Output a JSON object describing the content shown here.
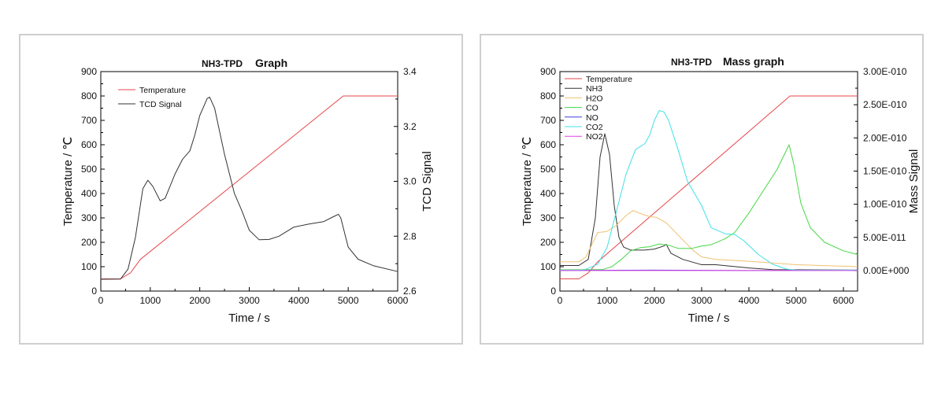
{
  "chart_data": [
    {
      "type": "line",
      "title_prefix": "NH3-TPD",
      "title_suffix": "Graph",
      "xlabel": "Time / s",
      "ylabel": "Temperature / ℃",
      "y2label": "TCD Signal",
      "xlim": [
        0,
        6000
      ],
      "ylim": [
        0,
        900
      ],
      "y2lim": [
        2.6,
        3.4
      ],
      "xticks": [
        0,
        1000,
        2000,
        3000,
        4000,
        5000,
        6000
      ],
      "yticks": [
        0,
        100,
        200,
        300,
        400,
        500,
        600,
        700,
        800,
        900
      ],
      "y2ticks": [
        "2.6",
        "2.8",
        "3.0",
        "3.2",
        "3.4"
      ],
      "grid": false,
      "legend_placement": "top-left",
      "series": [
        {
          "name": "Temperature",
          "axis": "left",
          "color": "#e8474a",
          "points": [
            [
              0,
              50
            ],
            [
              400,
              50
            ],
            [
              600,
              75
            ],
            [
              800,
              130
            ],
            [
              4900,
              800
            ],
            [
              6000,
              800
            ]
          ]
        },
        {
          "name": "TCD Signal",
          "axis": "right",
          "color": "#333333",
          "points": [
            [
              0,
              2.643
            ],
            [
              400,
              2.644
            ],
            [
              550,
              2.68
            ],
            [
              700,
              2.796
            ],
            [
              850,
              2.973
            ],
            [
              950,
              3.004
            ],
            [
              1050,
              2.982
            ],
            [
              1200,
              2.929
            ],
            [
              1300,
              2.938
            ],
            [
              1500,
              3.027
            ],
            [
              1650,
              3.08
            ],
            [
              1800,
              3.111
            ],
            [
              1900,
              3.169
            ],
            [
              2000,
              3.24
            ],
            [
              2150,
              3.302
            ],
            [
              2200,
              3.307
            ],
            [
              2300,
              3.267
            ],
            [
              2500,
              3.098
            ],
            [
              2700,
              2.956
            ],
            [
              2850,
              2.893
            ],
            [
              3000,
              2.822
            ],
            [
              3200,
              2.787
            ],
            [
              3400,
              2.788
            ],
            [
              3600,
              2.8
            ],
            [
              3900,
              2.833
            ],
            [
              4200,
              2.844
            ],
            [
              4500,
              2.853
            ],
            [
              4700,
              2.871
            ],
            [
              4800,
              2.88
            ],
            [
              4850,
              2.867
            ],
            [
              5000,
              2.76
            ],
            [
              5200,
              2.716
            ],
            [
              5500,
              2.693
            ],
            [
              6000,
              2.671
            ]
          ]
        }
      ]
    },
    {
      "type": "line",
      "title_prefix": "NH3-TPD",
      "title_suffix": "Mass graph",
      "xlabel": "Time / s",
      "ylabel": "Temperature / ℃",
      "y2label": "Mass Signal",
      "xlim": [
        0,
        6300
      ],
      "ylim": [
        0,
        900
      ],
      "y2lim": [
        -3.09e-11,
        3e-10
      ],
      "xticks": [
        0,
        1000,
        2000,
        3000,
        4000,
        5000,
        6000
      ],
      "yticks": [
        0,
        100,
        200,
        300,
        400,
        500,
        600,
        700,
        800,
        900
      ],
      "y2ticks": [
        "0.00E+000",
        "5.00E-011",
        "1.00E-010",
        "1.50E-010",
        "2.00E-010",
        "2.50E-010",
        "3.00E-010"
      ],
      "grid": false,
      "legend_placement": "top-left",
      "series": [
        {
          "name": "Temperature",
          "axis": "left",
          "color": "#e8474a",
          "points": [
            [
              0,
              50
            ],
            [
              400,
              50
            ],
            [
              600,
              75
            ],
            [
              800,
              120
            ],
            [
              4870,
              800
            ],
            [
              6300,
              800
            ]
          ]
        },
        {
          "name": "NH3",
          "axis": "right",
          "color": "#333333",
          "points": [
            [
              0,
              7.7e-12
            ],
            [
              400,
              7.7e-12
            ],
            [
              600,
              1.69e-11
            ],
            [
              750,
              7.94e-11
            ],
            [
              850,
              1.713e-10
            ],
            [
              950,
              2.063e-10
            ],
            [
              1050,
              1.75e-10
            ],
            [
              1150,
              9.78e-11
            ],
            [
              1250,
              5e-11
            ],
            [
              1350,
              3.53e-11
            ],
            [
              1500,
              3.09e-11
            ],
            [
              1800,
              3.09e-11
            ],
            [
              2000,
              3.24e-11
            ],
            [
              2200,
              3.71e-11
            ],
            [
              2250,
              3.97e-11
            ],
            [
              2350,
              2.61e-11
            ],
            [
              2600,
              1.69e-11
            ],
            [
              3000,
              8.8e-12
            ],
            [
              3300,
              8.8e-12
            ],
            [
              4000,
              4e-12
            ],
            [
              4500,
              1.5e-12
            ],
            [
              6300,
              7e-13
            ]
          ]
        },
        {
          "name": "H2O",
          "axis": "right",
          "color": "#f0c070",
          "points": [
            [
              0,
              1.32e-11
            ],
            [
              400,
              1.32e-11
            ],
            [
              550,
              2.06e-11
            ],
            [
              700,
              4.26e-11
            ],
            [
              800,
              5.74e-11
            ],
            [
              900,
              5.81e-11
            ],
            [
              1000,
              5.92e-11
            ],
            [
              1200,
              6.84e-11
            ],
            [
              1400,
              8.31e-11
            ],
            [
              1550,
              9.04e-11
            ],
            [
              1700,
              8.6e-11
            ],
            [
              1900,
              8.13e-11
            ],
            [
              2050,
              8.01e-11
            ],
            [
              2250,
              7.21e-11
            ],
            [
              2500,
              5.37e-11
            ],
            [
              2800,
              3.16e-11
            ],
            [
              3000,
              2.06e-11
            ],
            [
              3300,
              1.69e-11
            ],
            [
              4000,
              1.4e-11
            ],
            [
              5000,
              8.8e-12
            ],
            [
              6300,
              5.9e-12
            ]
          ]
        },
        {
          "name": "CO",
          "axis": "right",
          "color": "#45d845",
          "points": [
            [
              0,
              1.1e-12
            ],
            [
              900,
              1.5e-12
            ],
            [
              1100,
              5.9e-12
            ],
            [
              1300,
              1.69e-11
            ],
            [
              1500,
              2.98e-11
            ],
            [
              1700,
              3.46e-11
            ],
            [
              1900,
              3.6e-11
            ],
            [
              2100,
              4.01e-11
            ],
            [
              2300,
              3.82e-11
            ],
            [
              2500,
              3.35e-11
            ],
            [
              2800,
              3.35e-11
            ],
            [
              3000,
              3.71e-11
            ],
            [
              3200,
              3.9e-11
            ],
            [
              3500,
              4.82e-11
            ],
            [
              3700,
              5.74e-11
            ],
            [
              4000,
              8.68e-11
            ],
            [
              4300,
              1.199e-10
            ],
            [
              4600,
              1.529e-10
            ],
            [
              4850,
              1.897e-10
            ],
            [
              4950,
              1.603e-10
            ],
            [
              5100,
              1.015e-10
            ],
            [
              5300,
              6.47e-11
            ],
            [
              5600,
              4.26e-11
            ],
            [
              6000,
              2.98e-11
            ],
            [
              6300,
              2.43e-11
            ]
          ]
        },
        {
          "name": "NO",
          "axis": "right",
          "color": "#4040e0",
          "points": [
            [
              0,
              0
            ],
            [
              2000,
              7e-13
            ],
            [
              4000,
              0
            ],
            [
              6300,
              5e-13
            ]
          ]
        },
        {
          "name": "CO2",
          "axis": "right",
          "color": "#40e0e8",
          "points": [
            [
              0,
              4e-13
            ],
            [
              500,
              7e-13
            ],
            [
              800,
              9.6e-12
            ],
            [
              1000,
              3.53e-11
            ],
            [
              1200,
              9.04e-11
            ],
            [
              1400,
              1.456e-10
            ],
            [
              1600,
              1.824e-10
            ],
            [
              1800,
              1.915e-10
            ],
            [
              1900,
              2.044e-10
            ],
            [
              2000,
              2.265e-10
            ],
            [
              2100,
              2.412e-10
            ],
            [
              2200,
              2.393e-10
            ],
            [
              2300,
              2.265e-10
            ],
            [
              2500,
              1.824e-10
            ],
            [
              2700,
              1.346e-10
            ],
            [
              3000,
              9.78e-11
            ],
            [
              3200,
              6.47e-11
            ],
            [
              3500,
              5.55e-11
            ],
            [
              3700,
              5.44e-11
            ],
            [
              3900,
              4.45e-11
            ],
            [
              4200,
              2.43e-11
            ],
            [
              4500,
              9.6e-12
            ],
            [
              4800,
              2.2e-12
            ],
            [
              5000,
              7e-13
            ],
            [
              6300,
              7e-13
            ]
          ]
        },
        {
          "name": "NO2",
          "axis": "right",
          "color": "#e040e0",
          "points": [
            [
              0,
              0
            ],
            [
              6300,
              0
            ]
          ]
        }
      ]
    }
  ]
}
